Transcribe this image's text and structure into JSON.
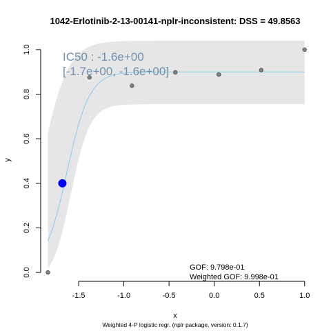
{
  "chart_data": {
    "type": "scatter",
    "title": "1042-Erlotinib-2-13-00141-nplr-inconsistent: DSS = 49.8563",
    "xlabel": "x",
    "ylabel": "y",
    "xlim": [
      -1.92,
      1.04
    ],
    "ylim": [
      -0.04,
      1.04
    ],
    "x_ticks": [
      -1.5,
      -1.0,
      -0.5,
      0.0,
      0.5,
      1.0
    ],
    "x_tick_labels": [
      "-1.5",
      "-1.0",
      "-0.5",
      "0.0",
      "0.5",
      "1.0"
    ],
    "y_ticks": [
      0.0,
      0.2,
      0.4,
      0.6,
      0.8,
      1.0
    ],
    "y_tick_labels": [
      "0.0",
      "0.2",
      "0.4",
      "0.6",
      "0.8",
      "1.0"
    ],
    "points": {
      "x": [
        -1.84,
        -1.38,
        -0.91,
        -0.43,
        0.05,
        0.52,
        1.0
      ],
      "y": [
        0.0,
        0.875,
        0.838,
        0.898,
        0.888,
        0.908,
        1.0
      ]
    },
    "curve": {
      "bottom": 0.0,
      "top": 0.9,
      "ic50": -1.63,
      "slope": 8.0
    },
    "confidence_band": {
      "upper_plateau": 1.04,
      "lower_plateau": 0.755
    },
    "ic50_point": {
      "x": -1.68,
      "y": 0.4
    },
    "ic50_label": "IC50 : -1.6e+00",
    "ic50_ci_label": "[-1.7e+00, -1.6e+00]",
    "gof_label": "GOF: 9.798e-01",
    "weighted_gof_label": "Weighted GOF: 9.998e-01",
    "footer": "Weighted 4-P logistic regr. (nplr package, version: 0.1.7)",
    "colors": {
      "band": "#e6e6e6",
      "curve": "#87ceeb",
      "points": "#808080",
      "ic50_point": "#0000ff",
      "ic50_text": "#6f8fae"
    }
  }
}
